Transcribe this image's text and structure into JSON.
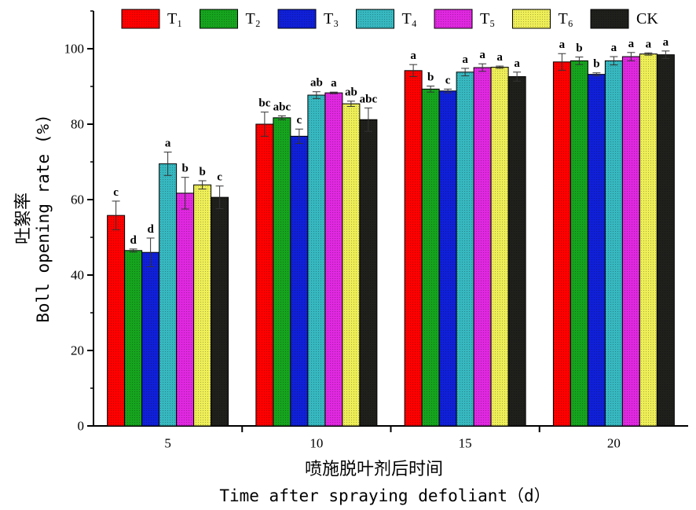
{
  "chart_data": {
    "type": "bar",
    "categories": [
      "5",
      "10",
      "15",
      "20"
    ],
    "series": [
      {
        "name": "T₁",
        "color": "#ff0000",
        "values": [
          55.8,
          80.0,
          94.2,
          96.5
        ],
        "errors": [
          3.8,
          3.2,
          1.6,
          2.2
        ],
        "letters": [
          "c",
          "bc",
          "a",
          "a"
        ]
      },
      {
        "name": "T₂",
        "color": "#16a41e",
        "values": [
          46.5,
          81.7,
          89.3,
          96.8
        ],
        "errors": [
          0.4,
          0.5,
          0.8,
          1.0
        ],
        "letters": [
          "d",
          "abc",
          "b",
          "b"
        ]
      },
      {
        "name": "T₃",
        "color": "#1020d8",
        "values": [
          46.0,
          76.8,
          88.8,
          93.2
        ],
        "errors": [
          3.8,
          1.9,
          0.5,
          0.4
        ],
        "letters": [
          "d",
          "c",
          "c",
          "b"
        ]
      },
      {
        "name": "T₄",
        "color": "#37b8c0",
        "values": [
          69.5,
          87.7,
          93.8,
          96.8
        ],
        "errors": [
          3.1,
          0.9,
          1.0,
          1.1
        ],
        "letters": [
          "a",
          "ab",
          "a",
          "a"
        ]
      },
      {
        "name": "T₅",
        "color": "#e028e0",
        "values": [
          61.7,
          88.3,
          95.0,
          97.9
        ],
        "errors": [
          4.2,
          0.2,
          1.0,
          1.1
        ],
        "letters": [
          "b",
          "a",
          "a",
          "a"
        ]
      },
      {
        "name": "T₆",
        "color": "#eeee58",
        "values": [
          63.9,
          85.4,
          95.1,
          98.6
        ],
        "errors": [
          1.1,
          0.7,
          0.3,
          0.3
        ],
        "letters": [
          "b",
          "ab",
          "a",
          "a"
        ]
      },
      {
        "name": "CK",
        "color": "#1f1f1c",
        "values": [
          60.6,
          81.2,
          92.6,
          98.4
        ],
        "errors": [
          3.0,
          3.1,
          1.2,
          1.0
        ],
        "letters": [
          "c",
          "abc",
          "a",
          "a"
        ]
      }
    ],
    "ylim": [
      0,
      110
    ],
    "yticks": [
      "0",
      "20",
      "40",
      "60",
      "80",
      "100"
    ],
    "ylabel_cn": "吐絮率",
    "ylabel_en": "Boll opening rate (%)",
    "xlabel_cn": "喷施脱叶剂后时间",
    "xlabel_en": "Time after spraying defoliant（d）",
    "legend_position": "top",
    "grid": false
  }
}
